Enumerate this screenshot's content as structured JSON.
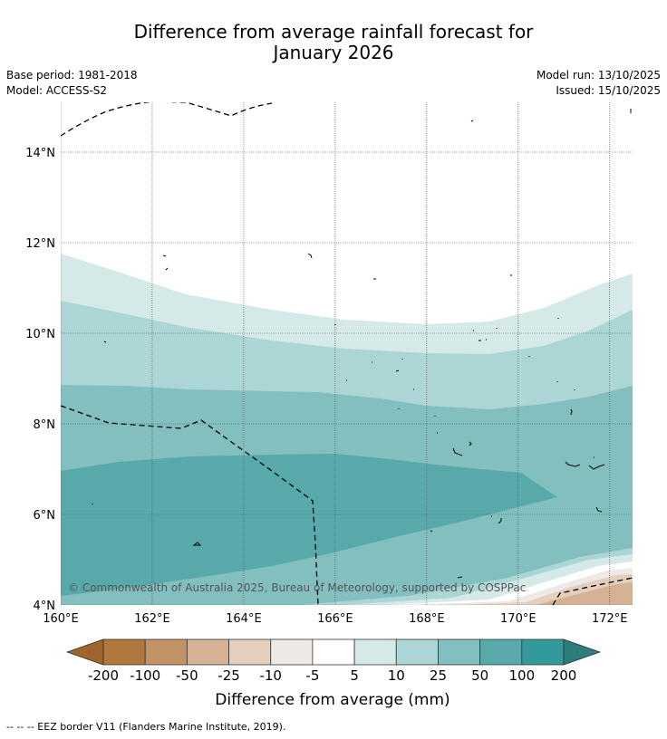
{
  "title": {
    "line1": "Difference from average rainfall forecast for",
    "line2": "January 2026"
  },
  "info": {
    "base_period": "Base period: 1981-2018",
    "model": "Model: ACCESS-S2",
    "model_run": "Model run: 13/10/2025",
    "issued": "Issued: 15/10/2025"
  },
  "axes": {
    "lon_ticks": [
      "160°E",
      "162°E",
      "164°E",
      "166°E",
      "168°E",
      "170°E",
      "172°E"
    ],
    "lon_values": [
      160,
      162,
      164,
      166,
      168,
      170,
      172
    ],
    "lat_ticks": [
      "4°N",
      "6°N",
      "8°N",
      "10°N",
      "12°N",
      "14°N"
    ],
    "lat_values": [
      4,
      6,
      8,
      10,
      12,
      14
    ],
    "lon_range": [
      160,
      172.5
    ],
    "lat_range": [
      4,
      15.1
    ]
  },
  "copyright": "© Commonwealth of Australia 2025, Bureau of Meteorology, supported by COSPPac",
  "colorbar": {
    "title": "Difference from average (mm)",
    "tick_labels": [
      "-200",
      "-100",
      "-50",
      "-25",
      "-10",
      "-5",
      "5",
      "10",
      "25",
      "50",
      "100",
      "200"
    ],
    "colors": [
      "#a0652a",
      "#b1783d",
      "#c29367",
      "#d4b293",
      "#e4cfbd",
      "#ece9e6",
      "#ffffff",
      "#d4e9e8",
      "#acd6d5",
      "#82bfbe",
      "#58a9aa",
      "#339a9b",
      "#2e7d7c"
    ]
  },
  "legend_note": "--  --  -- EEZ border V11 (Flanders Marine Institute, 2019)."
}
